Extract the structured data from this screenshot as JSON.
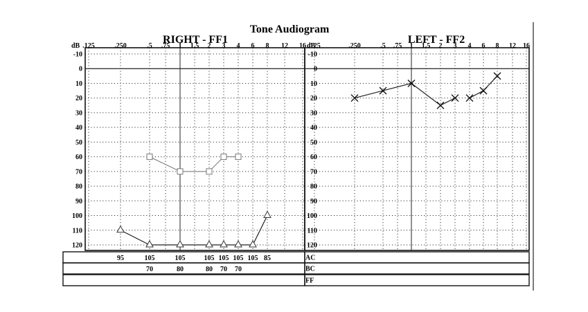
{
  "page": {
    "title": "Tone Audiogram"
  },
  "chart_data": [
    {
      "type": "line",
      "title": "RIGHT - FF1",
      "ylabel": "dB",
      "xticks": [
        ".125",
        ".250",
        ".5",
        ".75",
        "1",
        "1.5",
        "2",
        "3",
        "4",
        "6",
        "8",
        "12",
        "16"
      ],
      "ylim": [
        -10,
        120
      ],
      "y_inverted": true,
      "yticks": [
        -10,
        0,
        10,
        20,
        30,
        40,
        50,
        60,
        70,
        80,
        90,
        100,
        110,
        120
      ],
      "grid": true,
      "series": [
        {
          "marker": "square",
          "x": [
            ".5",
            "1",
            "2",
            "3",
            "4"
          ],
          "values": [
            60,
            70,
            70,
            60,
            60
          ]
        },
        {
          "marker": "triangle",
          "x": [
            ".250",
            ".5",
            "1",
            "2",
            "3",
            "4",
            "6",
            "8"
          ],
          "values": [
            110,
            120,
            120,
            120,
            120,
            120,
            120,
            100
          ]
        }
      ],
      "table": {
        "row_labels": [
          "AC",
          "BC",
          "FF"
        ],
        "rows": [
          [
            {
              "x": ".250",
              "text": "95"
            },
            {
              "x": ".5",
              "text": "105"
            },
            {
              "x": "1",
              "text": "105"
            },
            {
              "x": "2",
              "text": "105"
            },
            {
              "x": "3",
              "text": "105"
            },
            {
              "x": "4",
              "text": "105"
            },
            {
              "x": "6",
              "text": "105"
            },
            {
              "x": "8",
              "text": "85"
            }
          ],
          [
            {
              "x": ".5",
              "text": "70"
            },
            {
              "x": "1",
              "text": "80"
            },
            {
              "x": "2",
              "text": "80"
            },
            {
              "x": "3",
              "text": "70"
            },
            {
              "x": "4",
              "text": "70"
            }
          ],
          []
        ]
      }
    },
    {
      "type": "line",
      "title": "LEFT - FF2",
      "ylabel": "dB",
      "xticks": [
        ".125",
        ".250",
        ".5",
        ".75",
        "1",
        "1.5",
        "2",
        "3",
        "4",
        "6",
        "8",
        "12",
        "16"
      ],
      "ylim": [
        -10,
        120
      ],
      "y_inverted": true,
      "yticks": [
        -10,
        0,
        10,
        20,
        30,
        40,
        50,
        60,
        70,
        80,
        90,
        100,
        110,
        120
      ],
      "grid": true,
      "series": [
        {
          "marker": "x",
          "x": [
            ".250",
            ".5",
            "1",
            "2",
            "3"
          ],
          "values": [
            20,
            15,
            10,
            25,
            20
          ]
        },
        {
          "marker": "x",
          "x": [
            "4",
            "6",
            "8"
          ],
          "values": [
            20,
            15,
            5
          ]
        }
      ],
      "table": {
        "row_labels": [
          "AC",
          "BC",
          "FF"
        ],
        "rows": [
          [],
          [],
          []
        ]
      }
    }
  ]
}
